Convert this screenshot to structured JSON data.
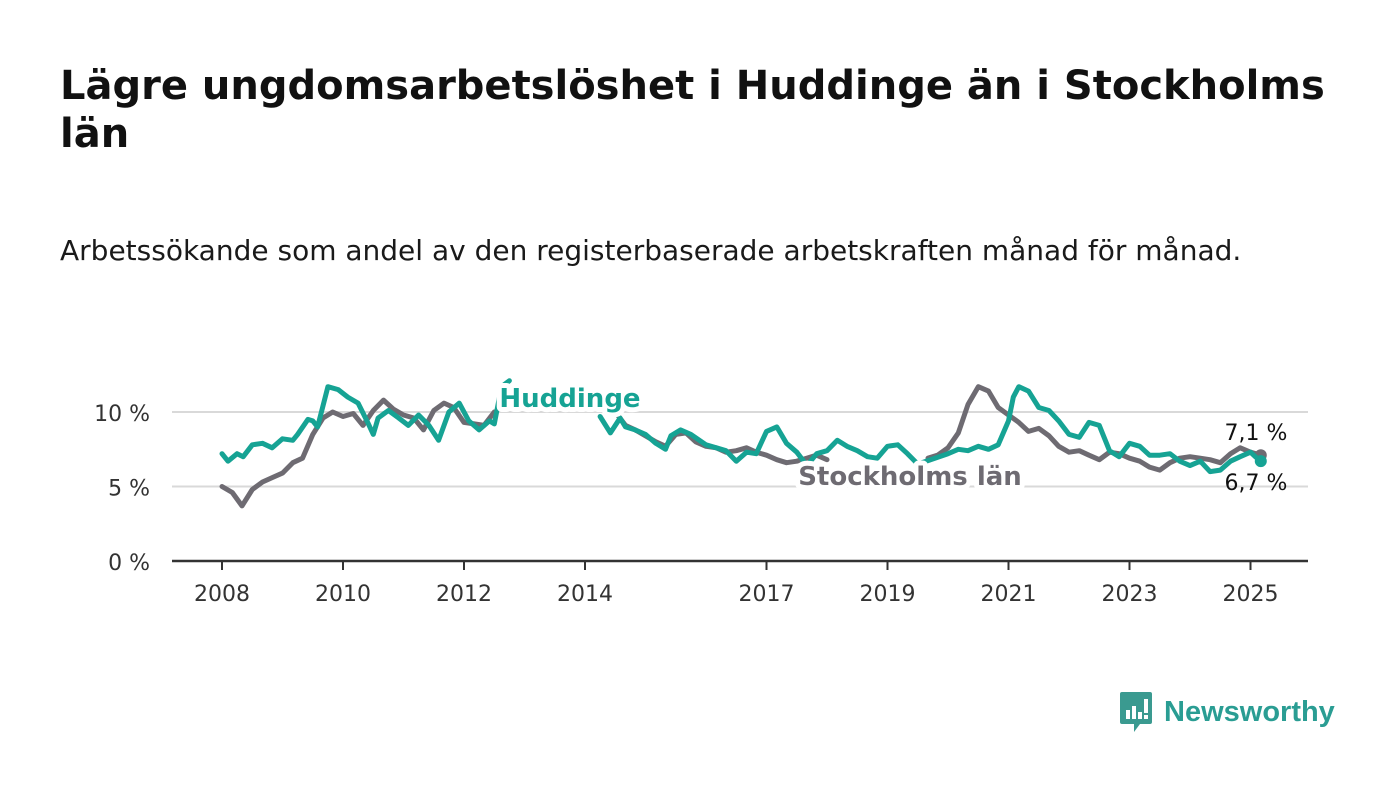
{
  "title": "Lägre ungdomsarbetslöshet i Huddinge än i Stockholms län",
  "subtitle": "Arbetssökande som andel av den registerbaserade arbetskraften månad för månad.",
  "brand": {
    "name": "Newsworthy",
    "color": "#2a9d93"
  },
  "chart_data": {
    "type": "line",
    "ylim": [
      0,
      12.5
    ],
    "xlim": [
      2007.75,
      2025.9
    ],
    "yticks": [
      {
        "value": 0,
        "label": "0 %"
      },
      {
        "value": 5,
        "label": "5 %"
      },
      {
        "value": 10,
        "label": "10 %"
      }
    ],
    "xticks": [
      {
        "value": 2008,
        "label": "2008"
      },
      {
        "value": 2010,
        "label": "2010"
      },
      {
        "value": 2012,
        "label": "2012"
      },
      {
        "value": 2014,
        "label": "2014"
      },
      {
        "value": 2017,
        "label": "2017"
      },
      {
        "value": 2019,
        "label": "2019"
      },
      {
        "value": 2021,
        "label": "2021"
      },
      {
        "value": 2023,
        "label": "2023"
      },
      {
        "value": 2025,
        "label": "2025"
      }
    ],
    "grid": true,
    "series": [
      {
        "name": "Stockholms län",
        "color": "#6e6b72",
        "end_label": "7,1 %",
        "points": [
          [
            2008.0,
            5.0
          ],
          [
            2008.17,
            4.6
          ],
          [
            2008.33,
            3.7
          ],
          [
            2008.5,
            4.8
          ],
          [
            2008.67,
            5.3
          ],
          [
            2008.83,
            5.6
          ],
          [
            2009.0,
            5.9
          ],
          [
            2009.17,
            6.6
          ],
          [
            2009.33,
            6.9
          ],
          [
            2009.5,
            8.5
          ],
          [
            2009.67,
            9.6
          ],
          [
            2009.83,
            10.0
          ],
          [
            2010.0,
            9.7
          ],
          [
            2010.17,
            9.9
          ],
          [
            2010.33,
            9.1
          ],
          [
            2010.5,
            10.1
          ],
          [
            2010.67,
            10.8
          ],
          [
            2010.83,
            10.2
          ],
          [
            2011.0,
            9.8
          ],
          [
            2011.17,
            9.6
          ],
          [
            2011.33,
            8.8
          ],
          [
            2011.5,
            10.1
          ],
          [
            2011.67,
            10.6
          ],
          [
            2011.83,
            10.3
          ],
          [
            2012.0,
            9.3
          ],
          [
            2012.17,
            9.2
          ],
          [
            2012.33,
            9.1
          ],
          [
            2012.5,
            10.0
          ],
          [
            2014.5,
            10.0
          ],
          [
            2014.67,
            9.1
          ],
          [
            2014.83,
            8.8
          ],
          [
            2015.0,
            8.4
          ],
          [
            2015.17,
            8.0
          ],
          [
            2015.33,
            7.7
          ],
          [
            2015.5,
            8.5
          ],
          [
            2015.67,
            8.6
          ],
          [
            2015.83,
            8.0
          ],
          [
            2016.0,
            7.7
          ],
          [
            2016.17,
            7.6
          ],
          [
            2016.33,
            7.3
          ],
          [
            2016.5,
            7.4
          ],
          [
            2016.67,
            7.6
          ],
          [
            2016.83,
            7.3
          ],
          [
            2017.0,
            7.1
          ],
          [
            2017.17,
            6.8
          ],
          [
            2017.33,
            6.6
          ],
          [
            2017.5,
            6.7
          ],
          [
            2017.67,
            6.9
          ],
          [
            2017.83,
            7.1
          ],
          [
            2018.0,
            6.8
          ],
          [
            2019.67,
            6.9
          ],
          [
            2019.83,
            7.1
          ],
          [
            2020.0,
            7.6
          ],
          [
            2020.17,
            8.6
          ],
          [
            2020.33,
            10.5
          ],
          [
            2020.5,
            11.7
          ],
          [
            2020.67,
            11.4
          ],
          [
            2020.83,
            10.3
          ],
          [
            2021.0,
            9.8
          ],
          [
            2021.17,
            9.3
          ],
          [
            2021.33,
            8.7
          ],
          [
            2021.5,
            8.9
          ],
          [
            2021.67,
            8.4
          ],
          [
            2021.83,
            7.7
          ],
          [
            2022.0,
            7.3
          ],
          [
            2022.17,
            7.4
          ],
          [
            2022.33,
            7.1
          ],
          [
            2022.5,
            6.8
          ],
          [
            2022.67,
            7.3
          ],
          [
            2022.83,
            7.2
          ],
          [
            2023.0,
            6.9
          ],
          [
            2023.17,
            6.7
          ],
          [
            2023.33,
            6.3
          ],
          [
            2023.5,
            6.1
          ],
          [
            2023.67,
            6.6
          ],
          [
            2023.83,
            6.9
          ],
          [
            2024.0,
            7.0
          ],
          [
            2024.17,
            6.9
          ],
          [
            2024.33,
            6.8
          ],
          [
            2024.5,
            6.6
          ],
          [
            2024.67,
            7.2
          ],
          [
            2024.83,
            7.6
          ],
          [
            2025.0,
            7.3
          ],
          [
            2025.17,
            7.1
          ]
        ]
      },
      {
        "name": "Huddinge",
        "color": "#16a394",
        "end_label": "6,7 %",
        "points": [
          [
            2008.0,
            7.2
          ],
          [
            2008.1,
            6.7
          ],
          [
            2008.25,
            7.2
          ],
          [
            2008.35,
            7.0
          ],
          [
            2008.5,
            7.8
          ],
          [
            2008.67,
            7.9
          ],
          [
            2008.83,
            7.6
          ],
          [
            2009.0,
            8.2
          ],
          [
            2009.17,
            8.1
          ],
          [
            2009.25,
            8.5
          ],
          [
            2009.42,
            9.5
          ],
          [
            2009.5,
            9.4
          ],
          [
            2009.58,
            9.0
          ],
          [
            2009.75,
            11.7
          ],
          [
            2009.92,
            11.5
          ],
          [
            2010.08,
            11.0
          ],
          [
            2010.25,
            10.6
          ],
          [
            2010.42,
            9.2
          ],
          [
            2010.5,
            8.5
          ],
          [
            2010.58,
            9.6
          ],
          [
            2010.75,
            10.1
          ],
          [
            2010.92,
            9.6
          ],
          [
            2011.08,
            9.1
          ],
          [
            2011.25,
            9.8
          ],
          [
            2011.42,
            9.1
          ],
          [
            2011.58,
            8.1
          ],
          [
            2011.75,
            10.0
          ],
          [
            2011.92,
            10.6
          ],
          [
            2012.08,
            9.4
          ],
          [
            2012.25,
            8.8
          ],
          [
            2012.42,
            9.4
          ],
          [
            2012.5,
            9.2
          ],
          [
            2012.62,
            11.7
          ],
          [
            2012.75,
            12.1
          ],
          [
            2014.25,
            9.7
          ],
          [
            2014.42,
            8.6
          ],
          [
            2014.5,
            9.1
          ],
          [
            2014.58,
            9.6
          ],
          [
            2014.67,
            9.0
          ],
          [
            2014.83,
            8.8
          ],
          [
            2015.0,
            8.5
          ],
          [
            2015.17,
            7.9
          ],
          [
            2015.33,
            7.5
          ],
          [
            2015.42,
            8.4
          ],
          [
            2015.58,
            8.8
          ],
          [
            2015.75,
            8.5
          ],
          [
            2016.0,
            7.8
          ],
          [
            2016.17,
            7.6
          ],
          [
            2016.33,
            7.4
          ],
          [
            2016.5,
            6.7
          ],
          [
            2016.67,
            7.3
          ],
          [
            2016.83,
            7.2
          ],
          [
            2017.0,
            8.7
          ],
          [
            2017.17,
            9.0
          ],
          [
            2017.33,
            7.9
          ],
          [
            2017.5,
            7.3
          ],
          [
            2017.67,
            6.4
          ],
          [
            2017.83,
            7.2
          ],
          [
            2018.0,
            7.4
          ],
          [
            2018.17,
            8.1
          ],
          [
            2018.33,
            7.7
          ],
          [
            2018.5,
            7.4
          ],
          [
            2018.67,
            7.0
          ],
          [
            2018.83,
            6.9
          ],
          [
            2019.0,
            7.7
          ],
          [
            2019.17,
            7.8
          ],
          [
            2019.33,
            7.2
          ],
          [
            2019.5,
            6.5
          ],
          [
            2020.0,
            7.2
          ],
          [
            2020.17,
            7.5
          ],
          [
            2020.33,
            7.4
          ],
          [
            2020.5,
            7.7
          ],
          [
            2020.67,
            7.5
          ],
          [
            2020.83,
            7.8
          ],
          [
            2021.0,
            9.4
          ],
          [
            2021.08,
            11.0
          ],
          [
            2021.17,
            11.7
          ],
          [
            2021.33,
            11.4
          ],
          [
            2021.5,
            10.3
          ],
          [
            2021.67,
            10.1
          ],
          [
            2021.83,
            9.4
          ],
          [
            2022.0,
            8.5
          ],
          [
            2022.17,
            8.3
          ],
          [
            2022.33,
            9.3
          ],
          [
            2022.5,
            9.1
          ],
          [
            2022.67,
            7.4
          ],
          [
            2022.83,
            7.0
          ],
          [
            2023.0,
            7.9
          ],
          [
            2023.17,
            7.7
          ],
          [
            2023.33,
            7.1
          ],
          [
            2023.5,
            7.1
          ],
          [
            2023.67,
            7.2
          ],
          [
            2023.83,
            6.7
          ],
          [
            2024.0,
            6.4
          ],
          [
            2024.17,
            6.7
          ],
          [
            2024.33,
            6.0
          ],
          [
            2024.5,
            6.1
          ],
          [
            2024.67,
            6.7
          ],
          [
            2024.83,
            7.0
          ],
          [
            2025.0,
            7.3
          ],
          [
            2025.08,
            7.0
          ],
          [
            2025.17,
            6.7
          ]
        ]
      }
    ]
  }
}
